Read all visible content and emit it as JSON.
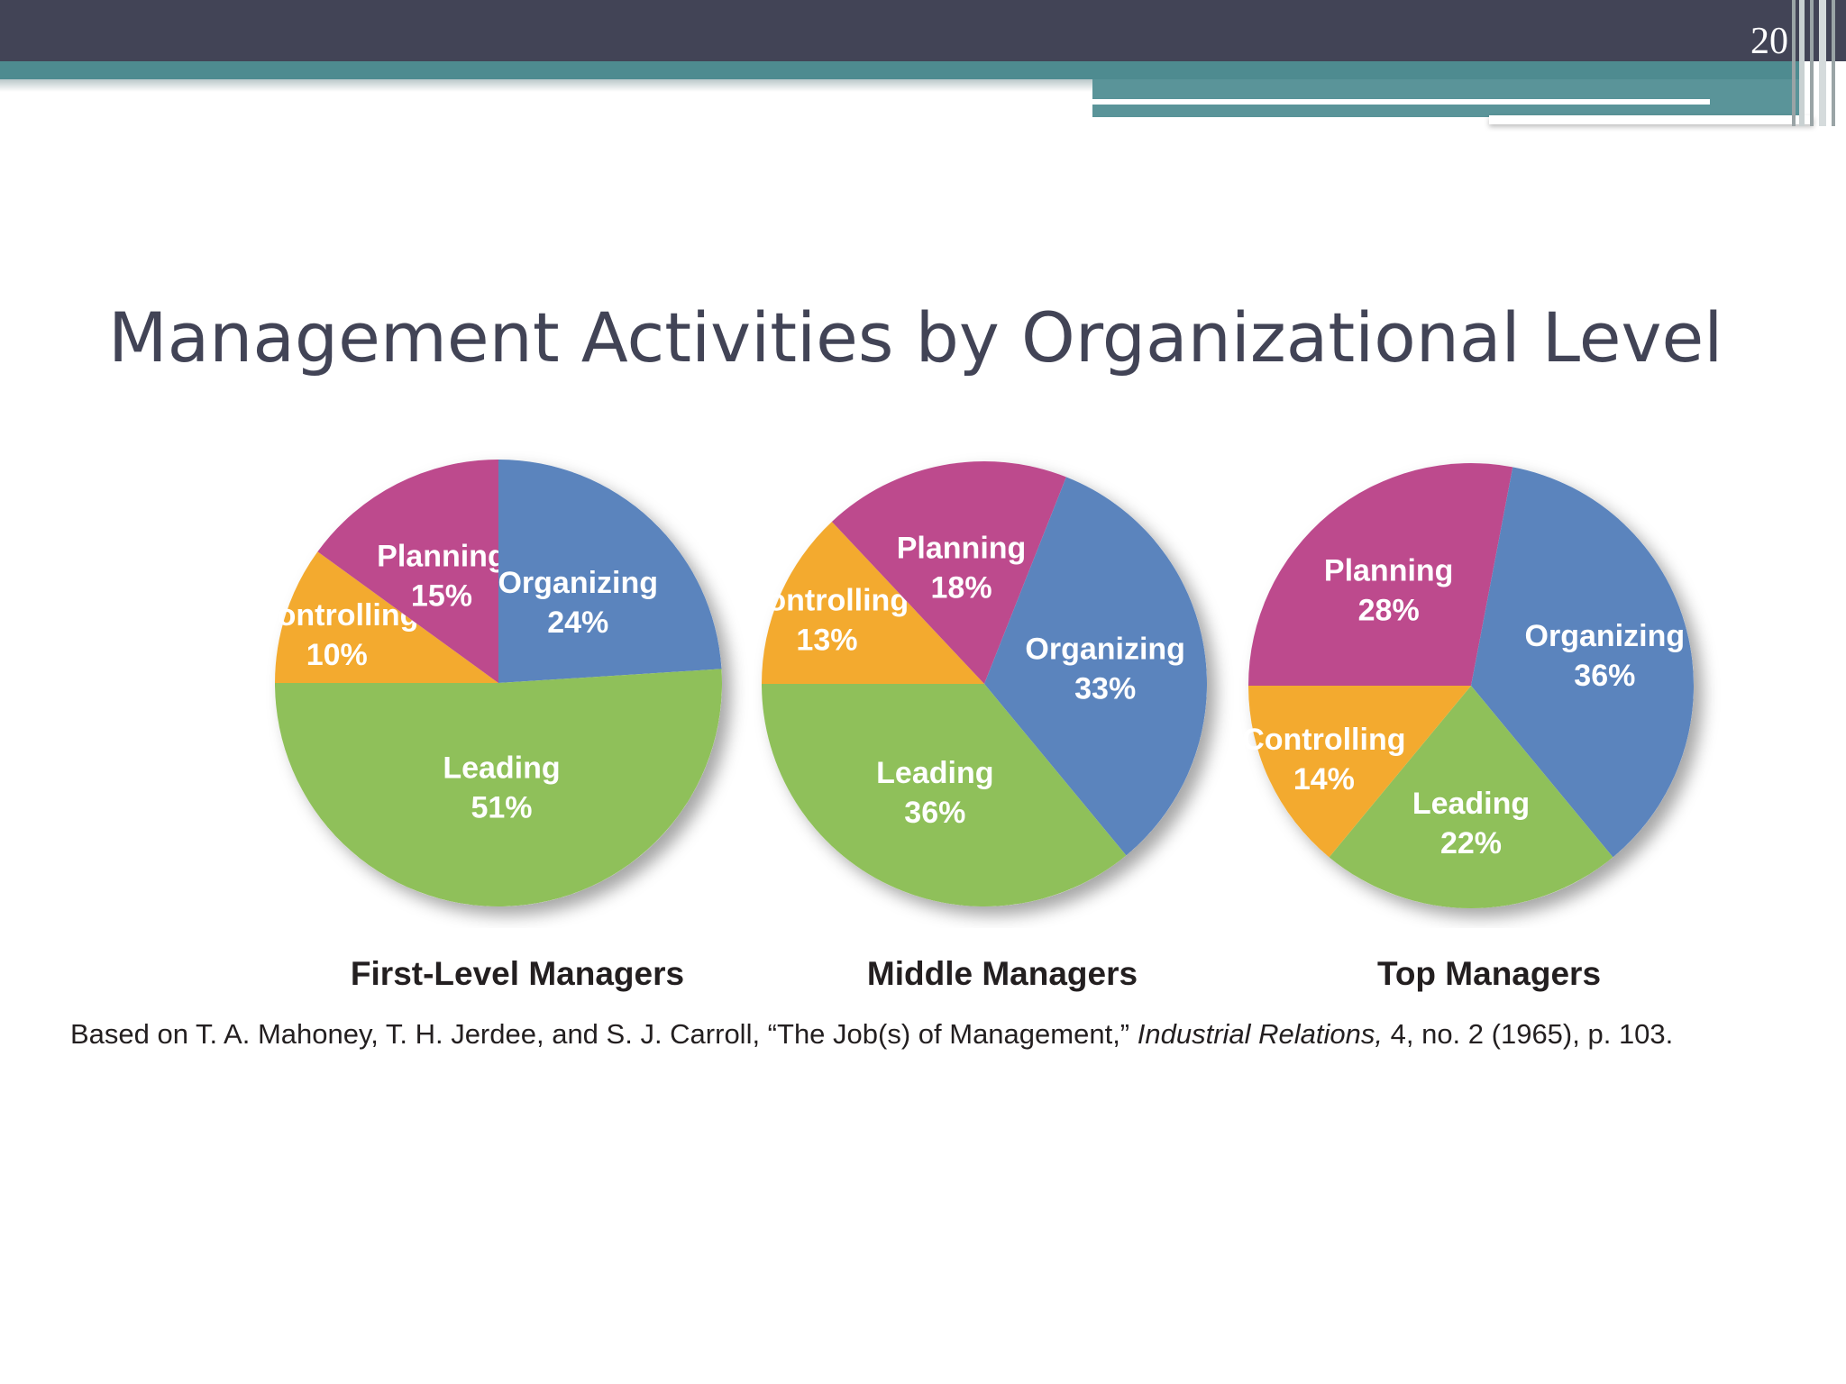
{
  "slide": {
    "number": "20",
    "title": "Management Activities by Organizational Level"
  },
  "colors": {
    "Planning": "#bd4a8d",
    "Organizing": "#5b84bd",
    "Leading": "#8fc05a",
    "Controlling": "#f3aa2f",
    "header": "#424456",
    "accent": "#4e8b90"
  },
  "chart_data": [
    {
      "type": "pie",
      "title": "First-Level Managers",
      "slices": [
        {
          "label": "Planning",
          "value": 15,
          "value_label": "15%"
        },
        {
          "label": "Organizing",
          "value": 24,
          "value_label": "24%"
        },
        {
          "label": "Leading",
          "value": 51,
          "value_label": "51%"
        },
        {
          "label": "Controlling",
          "value": 10,
          "value_label": "10%"
        }
      ]
    },
    {
      "type": "pie",
      "title": "Middle Managers",
      "slices": [
        {
          "label": "Planning",
          "value": 18,
          "value_label": "18%"
        },
        {
          "label": "Organizing",
          "value": 33,
          "value_label": "33%"
        },
        {
          "label": "Leading",
          "value": 36,
          "value_label": "36%"
        },
        {
          "label": "Controlling",
          "value": 13,
          "value_label": "13%"
        }
      ]
    },
    {
      "type": "pie",
      "title": "Top Managers",
      "slices": [
        {
          "label": "Planning",
          "value": 28,
          "value_label": "28%"
        },
        {
          "label": "Organizing",
          "value": 36,
          "value_label": "36%"
        },
        {
          "label": "Leading",
          "value": 22,
          "value_label": "22%"
        },
        {
          "label": "Controlling",
          "value": 14,
          "value_label": "14%"
        }
      ]
    }
  ],
  "source": {
    "before": "Based on T. A. Mahoney, T. H. Jerdee, and S. J. Carroll, “The Job(s) of Management,” ",
    "journal": "Industrial Relations,",
    "after": " 4, no. 2 (1965), p. 103."
  }
}
